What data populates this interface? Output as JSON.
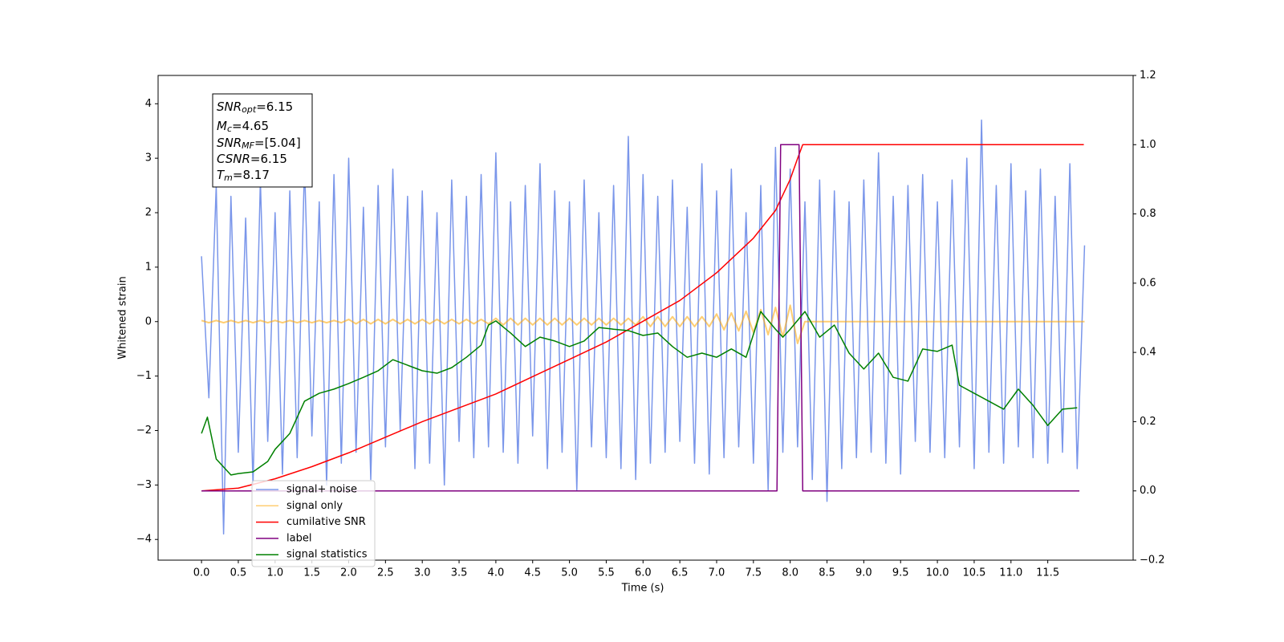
{
  "chart_data": {
    "type": "line",
    "xlabel": "Time (s)",
    "ylabel": "Whitened strain",
    "xlim": [
      -0.59,
      12.66
    ],
    "ylim": [
      -4.38,
      4.52
    ],
    "y2lim": [
      -0.2,
      1.2
    ],
    "xticks": [
      {
        "value": 0,
        "label": "0.0"
      },
      0.5,
      {
        "value": 1,
        "label": "1.0"
      },
      1.5,
      {
        "value": 2,
        "label": "2.0"
      },
      2.5,
      {
        "value": 3,
        "label": "3.0"
      },
      3.5,
      {
        "value": 4,
        "label": "4.0"
      },
      4.5,
      {
        "value": 5,
        "label": "5.0"
      },
      5.5,
      {
        "value": 6,
        "label": "6.0"
      },
      6.5,
      {
        "value": 7,
        "label": "7.0"
      },
      7.5,
      {
        "value": 8,
        "label": "8.0"
      },
      8.5,
      {
        "value": 9,
        "label": "9.0"
      },
      9.5,
      {
        "value": 10,
        "label": "10.0"
      },
      10.5,
      {
        "value": 11,
        "label": "11.0"
      },
      11.5
    ],
    "yticks": [
      {
        "value": -4,
        "label": "−4"
      },
      {
        "value": -3,
        "label": "−3"
      },
      {
        "value": -2,
        "label": "−2"
      },
      {
        "value": -1,
        "label": "−1"
      },
      0,
      1,
      2,
      3,
      4
    ],
    "y2ticks": [
      {
        "value": -0.2,
        "label": "−0.2"
      },
      {
        "value": 0,
        "label": "0.0"
      },
      0.2,
      0.4,
      0.6,
      0.8,
      {
        "value": 1,
        "label": "1.0"
      },
      1.2
    ],
    "annotation_lines": [
      {
        "symbol": "SNR",
        "sub": "opt",
        "text": "=6.15"
      },
      {
        "symbol": "M",
        "sub": "c",
        "text": "=4.65"
      },
      {
        "symbol": "SNR",
        "sub": "MF",
        "text": "=[5.04]"
      },
      {
        "symbol": "CSNR",
        "text": "=6.15"
      },
      {
        "symbol": "T",
        "sub": "m",
        "text": "=8.17"
      }
    ],
    "x": [
      0,
      0.1,
      0.2,
      0.3,
      0.4,
      0.5,
      0.6,
      0.7,
      0.8,
      0.9,
      1,
      1.1,
      1.2,
      1.3,
      1.4,
      1.5,
      1.6,
      1.7,
      1.8,
      1.9,
      2,
      2.1,
      2.2,
      2.3,
      2.4,
      2.5,
      2.6,
      2.7,
      2.8,
      2.9,
      3,
      3.1,
      3.2,
      3.3,
      3.4,
      3.5,
      3.6,
      3.7,
      3.8,
      3.9,
      4,
      4.1,
      4.2,
      4.3,
      4.4,
      4.5,
      4.6,
      4.7,
      4.8,
      4.9,
      5,
      5.1,
      5.2,
      5.3,
      5.4,
      5.5,
      5.6,
      5.7,
      5.8,
      5.9,
      6,
      6.1,
      6.2,
      6.3,
      6.4,
      6.5,
      6.6,
      6.7,
      6.8,
      6.9,
      7,
      7.1,
      7.2,
      7.3,
      7.4,
      7.5,
      7.6,
      7.7,
      7.8,
      7.9,
      8,
      8.1,
      8.2,
      8.3,
      8.4,
      8.5,
      8.6,
      8.7,
      8.8,
      8.9,
      9,
      9.1,
      9.2,
      9.3,
      9.4,
      9.5,
      9.6,
      9.7,
      9.8,
      9.9,
      10,
      10.1,
      10.2,
      10.3,
      10.4,
      10.5,
      10.6,
      10.7,
      10.8,
      10.9,
      11,
      11.1,
      11.2,
      11.3,
      11.4,
      11.5,
      11.6,
      11.7,
      11.8,
      11.9,
      12
    ],
    "series": [
      {
        "name": "signal+ noise",
        "color": "#7a96ea",
        "values": [
          1.2,
          -1.4,
          2.5,
          -3.9,
          2.3,
          -2.4,
          1.9,
          -3.0,
          2.6,
          -2.2,
          2.0,
          -2.8,
          2.4,
          -2.5,
          2.9,
          -2.1,
          2.2,
          -3.0,
          2.7,
          -2.6,
          3.0,
          -2.4,
          2.1,
          -2.9,
          2.5,
          -2.3,
          2.8,
          -2.0,
          2.3,
          -2.7,
          2.4,
          -2.6,
          2.0,
          -3.0,
          2.6,
          -2.2,
          2.3,
          -2.5,
          2.7,
          -2.3,
          3.1,
          -2.4,
          2.2,
          -2.6,
          2.5,
          -2.1,
          2.9,
          -2.7,
          2.4,
          -2.4,
          2.2,
          -3.1,
          2.6,
          -2.3,
          2.0,
          -2.5,
          2.5,
          -2.7,
          3.4,
          -2.9,
          2.7,
          -2.6,
          2.3,
          -2.4,
          2.6,
          -2.2,
          2.1,
          -2.6,
          2.9,
          -2.8,
          2.4,
          -2.5,
          2.8,
          -2.3,
          2.0,
          -2.6,
          2.5,
          -3.1,
          3.2,
          -2.4,
          2.8,
          -2.3,
          2.2,
          -2.9,
          2.6,
          -3.3,
          2.4,
          -2.7,
          2.2,
          -2.5,
          2.6,
          -2.4,
          3.1,
          -2.6,
          2.3,
          -2.8,
          2.5,
          -2.2,
          2.7,
          -2.4,
          2.2,
          -2.5,
          2.6,
          -2.3,
          3.0,
          -2.7,
          3.7,
          -2.4,
          2.5,
          -2.6,
          2.9,
          -2.3,
          2.4,
          -2.5,
          2.8,
          -2.6,
          2.3,
          -2.4,
          2.9,
          -2.7,
          1.4
        ]
      },
      {
        "name": "signal only",
        "color": "#ffa500",
        "values": [
          0.02,
          -0.02,
          0.02,
          -0.02,
          0.02,
          -0.02,
          0.02,
          -0.02,
          0.02,
          -0.02,
          0.02,
          -0.02,
          0.02,
          -0.02,
          0.02,
          -0.02,
          0.02,
          -0.02,
          0.02,
          -0.02,
          0.04,
          -0.04,
          0.04,
          -0.04,
          0.04,
          -0.04,
          0.04,
          -0.04,
          0.04,
          -0.04,
          0.04,
          -0.04,
          0.04,
          -0.04,
          0.04,
          -0.04,
          0.04,
          -0.04,
          0.04,
          -0.04,
          0.06,
          -0.06,
          0.06,
          -0.06,
          0.06,
          -0.06,
          0.06,
          -0.06,
          0.06,
          -0.06,
          0.06,
          -0.06,
          0.06,
          -0.06,
          0.06,
          -0.06,
          0.06,
          -0.06,
          0.06,
          -0.06,
          0.09,
          -0.09,
          0.09,
          -0.09,
          0.09,
          -0.09,
          0.09,
          -0.09,
          0.09,
          -0.09,
          0.14,
          -0.15,
          0.16,
          -0.17,
          0.19,
          -0.2,
          0.22,
          -0.24,
          0.26,
          -0.28,
          0.3,
          -0.4,
          0,
          0,
          0,
          0,
          0,
          0,
          0,
          0,
          0,
          0,
          0,
          0,
          0,
          0,
          0,
          0,
          0,
          0,
          0,
          0,
          0,
          0,
          0,
          0,
          0,
          0,
          0,
          0,
          0,
          0,
          0,
          0,
          0,
          0,
          0,
          0,
          0,
          0,
          0
        ]
      },
      {
        "name": "cumilative SNR",
        "color": "#ff0000",
        "axis": "y2",
        "x": [
          0,
          0.5,
          1,
          1.5,
          2,
          2.5,
          3,
          3.5,
          4,
          4.5,
          5,
          5.5,
          6,
          6.5,
          7,
          7.5,
          7.8,
          8,
          8.1,
          8.17,
          11.99
        ],
        "values": [
          0,
          0.008,
          0.035,
          0.07,
          0.11,
          0.155,
          0.2,
          0.24,
          0.28,
          0.33,
          0.38,
          0.43,
          0.49,
          0.55,
          0.63,
          0.73,
          0.81,
          0.9,
          0.96,
          1,
          1
        ]
      },
      {
        "name": "label",
        "color": "#800080",
        "axis": "y2",
        "x": [
          0,
          7.82,
          7.87,
          8.12,
          8.17,
          11.93
        ],
        "values": [
          0,
          0,
          1,
          1,
          0,
          0
        ]
      },
      {
        "name": "signal statistics",
        "color": "#008000",
        "axis": "y2",
        "x": [
          0,
          0.08,
          0.2,
          0.4,
          0.5,
          0.7,
          0.9,
          1,
          1.2,
          1.4,
          1.6,
          1.8,
          2,
          2.2,
          2.4,
          2.6,
          2.8,
          3,
          3.2,
          3.4,
          3.6,
          3.8,
          3.9,
          4,
          4.2,
          4.4,
          4.6,
          4.8,
          5,
          5.2,
          5.4,
          5.6,
          5.8,
          6,
          6.2,
          6.4,
          6.6,
          6.8,
          7,
          7.2,
          7.4,
          7.6,
          7.8,
          7.9,
          8,
          8.2,
          8.4,
          8.6,
          8.8,
          9,
          9.2,
          9.4,
          9.6,
          9.8,
          10,
          10.2,
          10.3,
          10.5,
          10.7,
          10.9,
          11.1,
          11.3,
          11.5,
          11.7,
          11.9
        ],
        "values": [
          0.166,
          0.213,
          0.092,
          0.046,
          0.05,
          0.055,
          0.085,
          0.12,
          0.166,
          0.259,
          0.282,
          0.294,
          0.31,
          0.328,
          0.347,
          0.379,
          0.363,
          0.347,
          0.34,
          0.356,
          0.386,
          0.421,
          0.479,
          0.491,
          0.456,
          0.417,
          0.444,
          0.433,
          0.417,
          0.433,
          0.472,
          0.467,
          0.463,
          0.449,
          0.456,
          0.417,
          0.386,
          0.398,
          0.386,
          0.41,
          0.386,
          0.518,
          0.467,
          0.444,
          0.467,
          0.518,
          0.444,
          0.479,
          0.398,
          0.352,
          0.398,
          0.328,
          0.317,
          0.41,
          0.403,
          0.421,
          0.305,
          0.282,
          0.259,
          0.236,
          0.294,
          0.247,
          0.189,
          0.236,
          0.24
        ]
      }
    ]
  }
}
